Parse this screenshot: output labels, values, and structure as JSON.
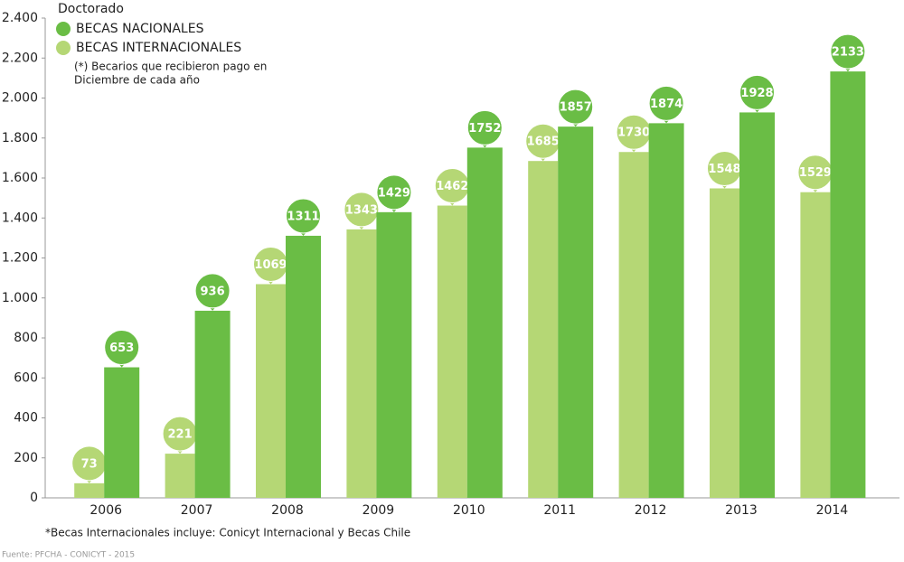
{
  "chart_data": {
    "type": "bar",
    "title": "Doctorado",
    "categories": [
      "2006",
      "2007",
      "2008",
      "2009",
      "2010",
      "2011",
      "2012",
      "2013",
      "2014"
    ],
    "series": [
      {
        "name": "BECAS INTERNACIONALES",
        "color": "#b5d775",
        "values": [
          73,
          221,
          1069,
          1343,
          1462,
          1685,
          1730,
          1548,
          1529
        ]
      },
      {
        "name": "BECAS NACIONALES",
        "color": "#6abd45",
        "values": [
          653,
          936,
          1311,
          1429,
          1752,
          1857,
          1874,
          1928,
          2133
        ]
      }
    ],
    "ylim": [
      0,
      2400
    ],
    "yticks": [
      0,
      200,
      400,
      600,
      800,
      {
        "value": 1000,
        "label": "1.000"
      },
      {
        "value": 1200,
        "label": "1.200"
      },
      {
        "value": 1400,
        "label": "1.400"
      },
      {
        "value": 1600,
        "label": "1.600"
      },
      {
        "value": 1800,
        "label": "1.800"
      },
      {
        "value": 2000,
        "label": "2.000"
      },
      {
        "value": 2200,
        "label": "2.200"
      },
      {
        "value": 2400,
        "label": "2.400"
      }
    ],
    "note": [
      "(*) Becarios que recibieron pago en",
      "Diciembre de cada año"
    ],
    "footnote": "*Becas Internacionales incluye: Conicyt Internacional y Becas Chile",
    "source": "Fuente: PFCHA - CONICYT - 2015"
  }
}
